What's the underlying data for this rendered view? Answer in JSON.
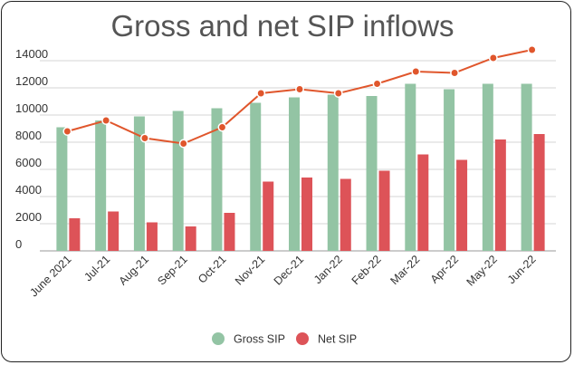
{
  "chart_data": {
    "type": "bar",
    "title": "Gross and net SIP inflows",
    "categories": [
      "June 2021",
      "Jul-21",
      "Aug-21",
      "Sep-21",
      "Oct-21",
      "Nov-21",
      "Dec-21",
      "Jan-22",
      "Feb-22",
      "Mar-22",
      "Apr-22",
      "May-22",
      "Jun-22"
    ],
    "yticks": [
      0,
      2000,
      4000,
      6000,
      8000,
      10000,
      12000,
      14000
    ],
    "ylim": [
      0,
      14000
    ],
    "grid": true,
    "legend_position": "bottom",
    "series": [
      {
        "name": "Gross SIP",
        "type": "bar",
        "color": "#93c4a4",
        "values": [
          9100,
          9600,
          9900,
          10300,
          10500,
          10900,
          11300,
          11500,
          11400,
          12300,
          11900,
          12300,
          12300
        ]
      },
      {
        "name": "Net SIP",
        "type": "bar",
        "color": "#dd5358",
        "values": [
          2400,
          2900,
          2100,
          1800,
          2800,
          5100,
          5400,
          5300,
          5900,
          7100,
          6700,
          8200,
          8600
        ]
      },
      {
        "type": "line",
        "color": "#e0562c",
        "values": [
          8800,
          9600,
          8300,
          7900,
          9100,
          11600,
          11900,
          11600,
          12300,
          13200,
          13100,
          14200,
          14800
        ]
      }
    ]
  }
}
